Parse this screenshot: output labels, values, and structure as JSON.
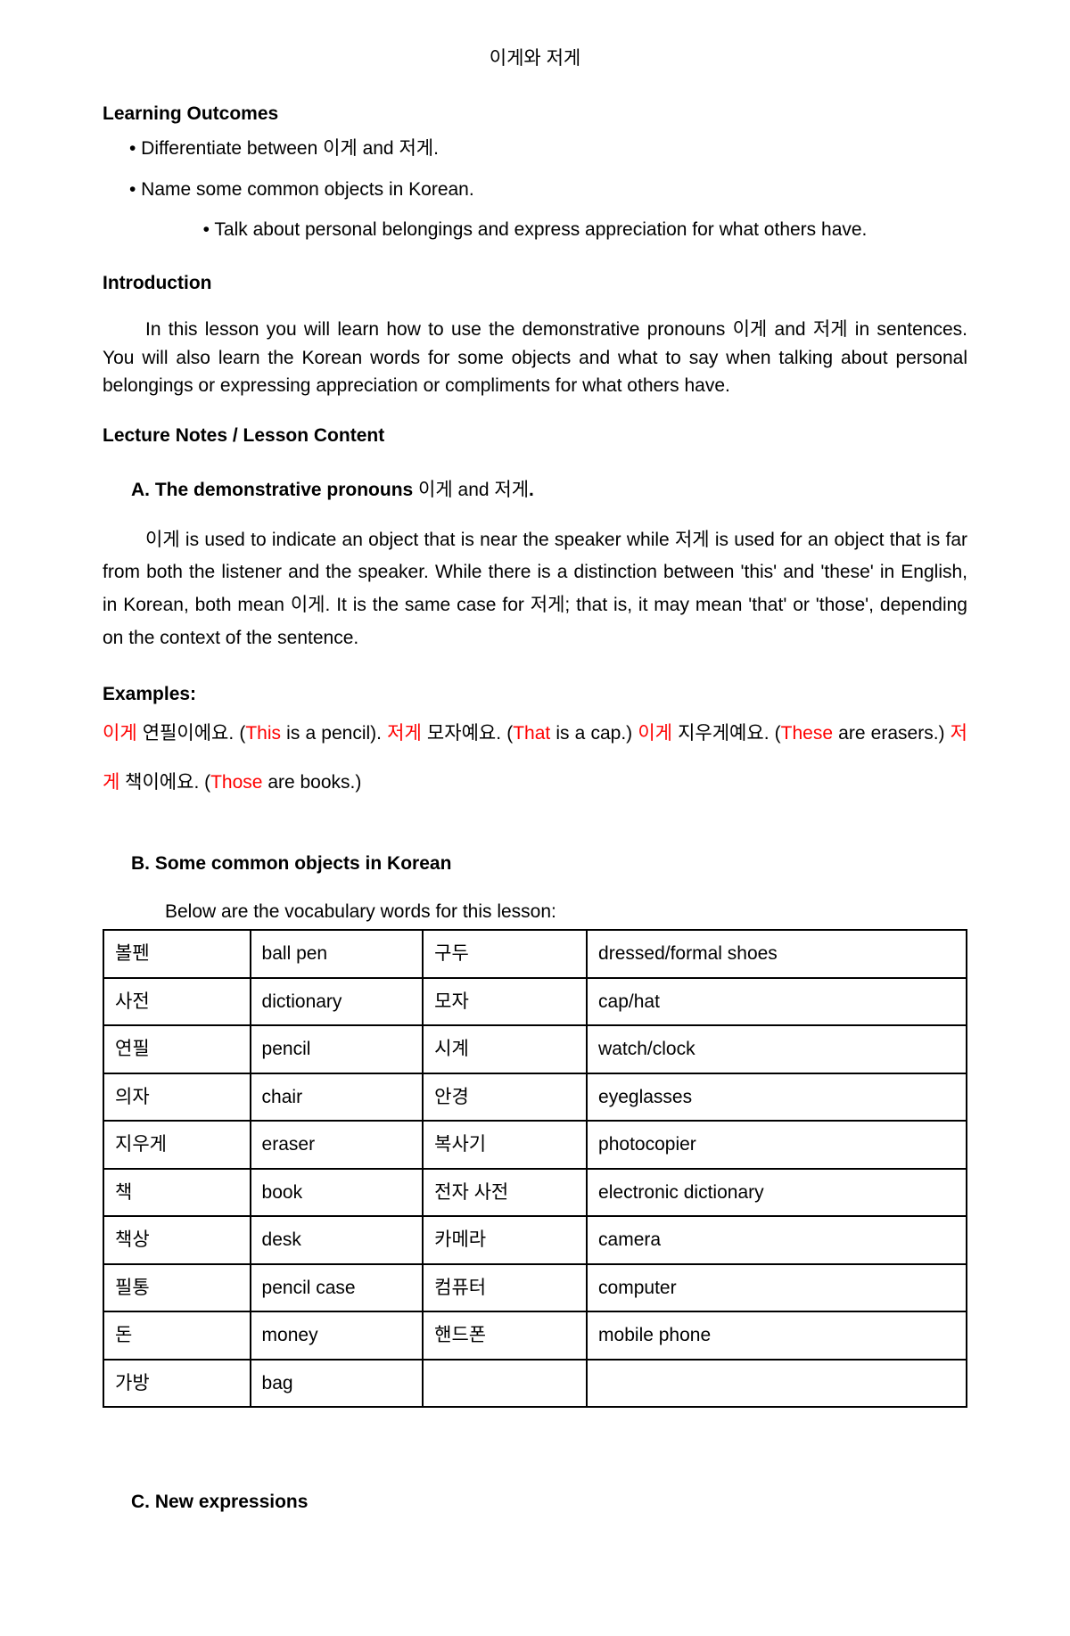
{
  "title": "이게와 저게",
  "headings": {
    "learning_outcomes": "Learning Outcomes",
    "introduction": "Introduction",
    "lecture_notes": "Lecture Notes / Lesson Content",
    "examples": "Examples:"
  },
  "outcomes": [
    "• Differentiate between 이게 and 저게.",
    "• Name some common objects in Korean.",
    "• Talk about personal belongings and express appreciation for what others have."
  ],
  "intro_text": "In this lesson you will learn how to use the demonstrative pronouns 이게 and 저게 in sentences. You will also learn the Korean words for some objects and what to say  when talking about personal belongings or expressing appreciation or compliments for  what others have.",
  "section_a": {
    "a_prefix": "A. The demonstrative pronouns ",
    "a_mid": "이게 and 저게",
    "a_suffix": ".",
    "body": "이게 is used to indicate an object that is near the speaker while 저게 is used for  an object that is far from both the listener and the speaker. While there is a distinction  between 'this' and 'these' in English, in Korean, both mean 이게. It is the same case for  저게; that is, it may mean 'that' or 'those', depending on the context of the sentence."
  },
  "examples": {
    "p1_a_red": "이게",
    "p1_a_txt": " 연필이에요. (",
    "p1_a_red2": "This",
    "p1_a_txt2": " is a pencil). ",
    "p1_b_red": "저게",
    "p1_b_txt": " 모자예요. (",
    "p1_b_red2": "That",
    "p1_b_txt2": " is a cap.) ",
    "p1_c_red": "이게",
    "p1_c_txt": " 지우게예요. (",
    "p1_c_red2": "These",
    "p1_c_txt2": " are erasers.) ",
    "p1_d_red": "저게",
    "p1_d_txt": " 책이에요. (",
    "p1_d_red2": "Those",
    "p1_d_txt2": " are books.)"
  },
  "section_b": {
    "heading": "B. Some common objects in Korean",
    "intro": "Below are the vocabulary words for this lesson:"
  },
  "vocab": [
    [
      "볼펜",
      "ball pen",
      "구두",
      "dressed/formal shoes"
    ],
    [
      "사전",
      "dictionary",
      "모자",
      "cap/hat"
    ],
    [
      "연필",
      "pencil",
      "시계",
      "watch/clock"
    ],
    [
      "의자",
      "chair",
      "안경",
      "eyeglasses"
    ],
    [
      "지우게",
      "eraser",
      "복사기",
      "photocopier"
    ],
    [
      "책",
      "book",
      "전자 사전",
      "electronic dictionary"
    ],
    [
      "책상",
      "desk",
      "카메라",
      "camera"
    ],
    [
      "필통",
      "pencil case",
      "컴퓨터",
      "computer"
    ],
    [
      "돈",
      "money",
      "핸드폰",
      "mobile phone"
    ],
    [
      "가방",
      "bag",
      "",
      ""
    ]
  ],
  "section_c": {
    "heading": "C. New expressions"
  },
  "colors": {
    "text": "#000000",
    "highlight": "#ff0000",
    "background": "#ffffff",
    "table_border": "#000000"
  }
}
